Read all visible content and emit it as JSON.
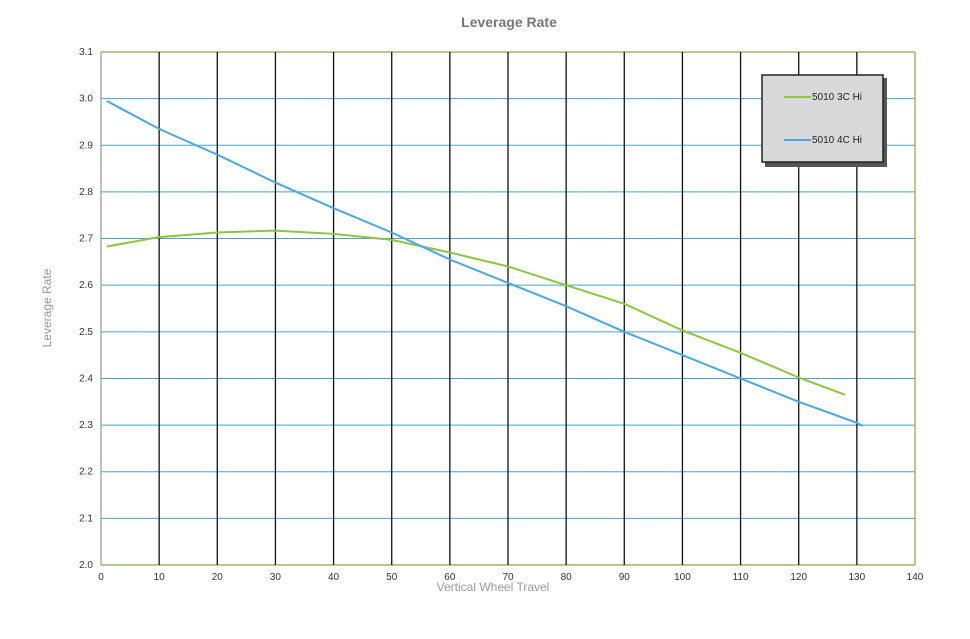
{
  "chart_data": {
    "type": "line",
    "title": "Leverage Rate",
    "xlabel": "Vertical Wheel Travel",
    "ylabel": "Leverage Rate",
    "xlim": [
      0,
      140
    ],
    "ylim": [
      2.0,
      3.1
    ],
    "xticks": [
      "0",
      "10",
      "20",
      "30",
      "40",
      "50",
      "60",
      "70",
      "80",
      "90",
      "100",
      "110",
      "120",
      "130",
      "140"
    ],
    "yticks": [
      "2.0",
      "2.1",
      "2.2",
      "2.3",
      "2.4",
      "2.5",
      "2.6",
      "2.7",
      "2.8",
      "2.9",
      "3.0",
      "3.1"
    ],
    "grid": true,
    "legend_position": "top-right",
    "series": [
      {
        "name": "5010 3C Hi",
        "color": "#8dc63f",
        "x": [
          1,
          10,
          20,
          30,
          40,
          50,
          60,
          70,
          80,
          90,
          100,
          110,
          120,
          128
        ],
        "y": [
          2.683,
          2.703,
          2.713,
          2.717,
          2.71,
          2.697,
          2.67,
          2.64,
          2.6,
          2.56,
          2.503,
          2.455,
          2.402,
          2.365
        ]
      },
      {
        "name": "5010 4C Hi",
        "color": "#4aa8e0",
        "x": [
          1,
          10,
          20,
          30,
          40,
          50,
          60,
          70,
          80,
          90,
          100,
          110,
          120,
          130,
          131
        ],
        "y": [
          2.995,
          2.935,
          2.88,
          2.82,
          2.765,
          2.713,
          2.655,
          2.605,
          2.555,
          2.5,
          2.45,
          2.4,
          2.35,
          2.305,
          2.298
        ]
      }
    ]
  }
}
